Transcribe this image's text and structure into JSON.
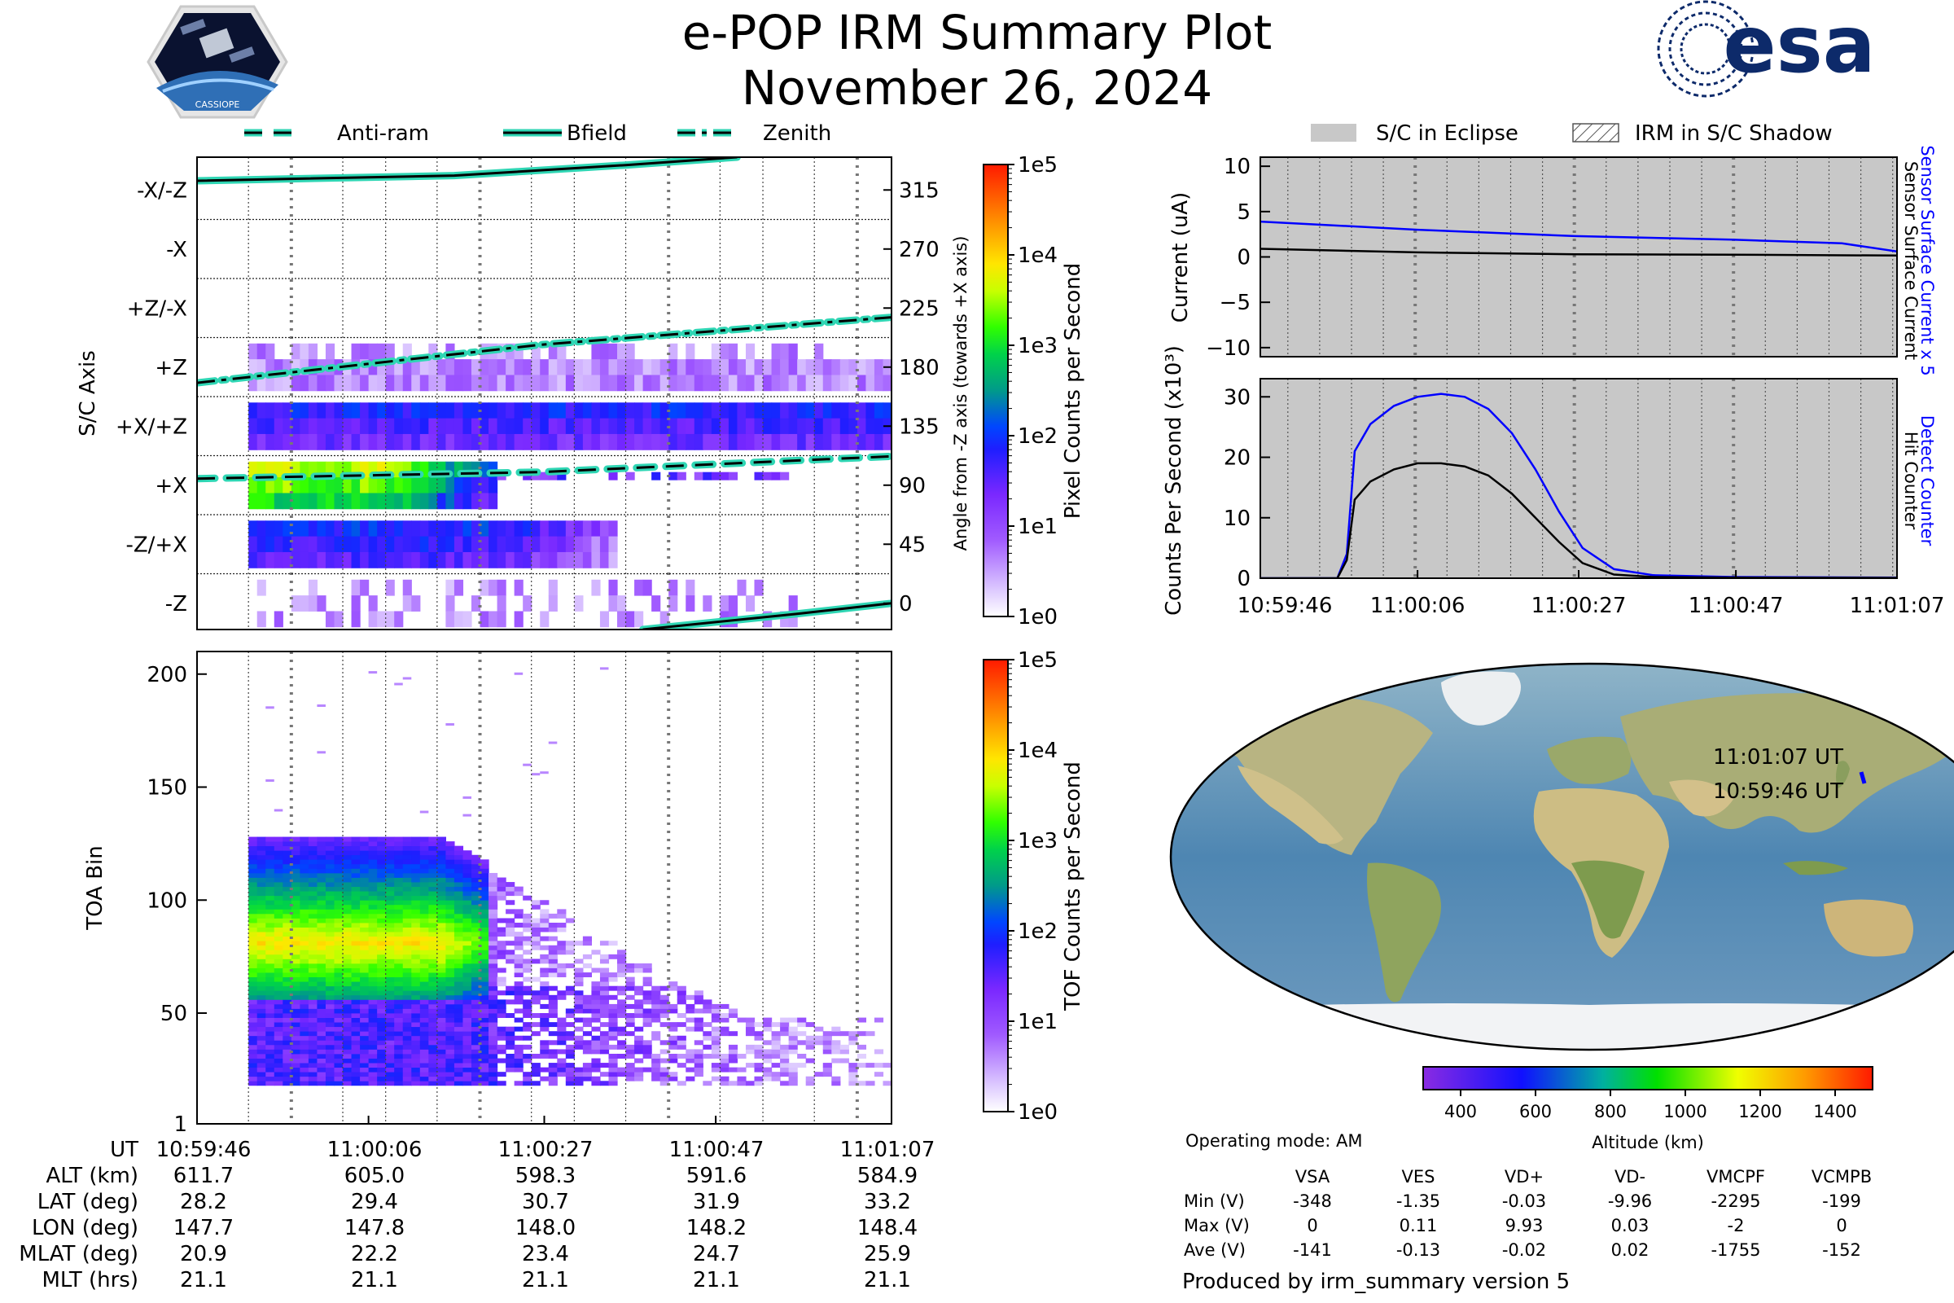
{
  "header": {
    "title": "e-POP IRM Summary Plot",
    "date": "November 26, 2024",
    "left_logo_text": "CASSIOPE",
    "right_logo_text": "esa"
  },
  "colors": {
    "bfield": "#000000",
    "trace_glow": "#2fd6b4",
    "sensor_current_x5": "#0000ff",
    "sensor_current": "#000000",
    "eclipse_fill": "#c8c8c8",
    "track": "#0000ff"
  },
  "legend_orientation": {
    "position": "top",
    "items": [
      {
        "label": "Anti-ram",
        "style": "dashed"
      },
      {
        "label": "Bfield",
        "style": "solid"
      },
      {
        "label": "Zenith",
        "style": "dashdot"
      }
    ]
  },
  "legend_eclipse": {
    "position": "top",
    "items": [
      {
        "label": "S/C in Eclipse",
        "style": "gray-fill"
      },
      {
        "label": "IRM in S/C Shadow",
        "style": "hatch"
      }
    ]
  },
  "ut_ticks": [
    "10:59:46",
    "11:00:06",
    "11:00:27",
    "11:00:47",
    "11:01:07"
  ],
  "orbit_table": {
    "rows": [
      {
        "label": "UT",
        "values": [
          "10:59:46",
          "11:00:06",
          "11:00:27",
          "11:00:47",
          "11:01:07"
        ]
      },
      {
        "label": "ALT (km)",
        "values": [
          "611.7",
          "605.0",
          "598.3",
          "591.6",
          "584.9"
        ]
      },
      {
        "label": "LAT (deg)",
        "values": [
          "28.2",
          "29.4",
          "30.7",
          "31.9",
          "33.2"
        ]
      },
      {
        "label": "LON (deg)",
        "values": [
          "147.7",
          "147.8",
          "148.0",
          "148.2",
          "148.4"
        ]
      },
      {
        "label": "MLAT (deg)",
        "values": [
          "20.9",
          "22.2",
          "23.4",
          "24.7",
          "25.9"
        ]
      },
      {
        "label": "MLT (hrs)",
        "values": [
          "21.1",
          "21.1",
          "21.1",
          "21.1",
          "21.1"
        ]
      }
    ]
  },
  "colorbar_pixel": {
    "label": "Pixel Counts per Second",
    "ticks": [
      "1e0",
      "1e1",
      "1e2",
      "1e3",
      "1e4",
      "1e5"
    ]
  },
  "colorbar_tof": {
    "label": "TOF Counts per Second",
    "ticks": [
      "1e0",
      "1e1",
      "1e2",
      "1e3",
      "1e4",
      "1e5"
    ]
  },
  "map": {
    "label_end": "11:01:07 UT",
    "label_start": "10:59:46 UT",
    "altitude_colorbar": {
      "label": "Altitude (km)",
      "ticks": [
        "400",
        "600",
        "800",
        "1000",
        "1200",
        "1400"
      ],
      "min": 300,
      "max": 1500
    }
  },
  "voltages": {
    "mode": "Operating mode: AM",
    "columns": [
      "VSA",
      "VES",
      "VD+",
      "VD-",
      "VMCPF",
      "VCMPB"
    ],
    "rows": [
      {
        "label": "Min (V)",
        "values": [
          "-348",
          "-1.35",
          "-0.03",
          "-9.96",
          "-2295",
          "-199"
        ]
      },
      {
        "label": "Max (V)",
        "values": [
          "0",
          "0.11",
          "9.93",
          "0.03",
          "-2",
          "0"
        ]
      },
      {
        "label": "Ave (V)",
        "values": [
          "-141",
          "-0.13",
          "-0.02",
          "0.02",
          "-1755",
          "-152"
        ]
      }
    ]
  },
  "footer": "Produced by irm_summary version 5",
  "chart_data": [
    {
      "type": "heatmap",
      "id": "sc-axis",
      "ylabel": "S/C Axis",
      "ylabel_right": "Angle from -Z axis (towards +X axis)",
      "y_categories": [
        "-X/-Z",
        "-X",
        "+Z/-X",
        "+Z",
        "+X/+Z",
        "+X",
        "-Z/+X",
        "-Z"
      ],
      "y_right_ticks": [
        315,
        270,
        225,
        180,
        135,
        90,
        45,
        0
      ],
      "ylim": [
        -20,
        340
      ],
      "x_ticks": [
        "10:59:46",
        "11:00:06",
        "11:00:27",
        "11:00:47",
        "11:01:07"
      ],
      "x_range_s": [
        0,
        81
      ],
      "colorbar": "Pixel Counts per Second",
      "series": [
        {
          "name": "Anti-ram",
          "style": "dashed",
          "points": [
            [
              0,
              95
            ],
            [
              40,
              100
            ],
            [
              81,
              112
            ]
          ]
        },
        {
          "name": "Bfield",
          "style": "solid",
          "segments": [
            [
              [
                0,
                322
              ],
              [
                30,
                326
              ],
              [
                50,
                334
              ],
              [
                63,
                340
              ]
            ],
            [
              [
                52,
                -20
              ],
              [
                70,
                -8
              ],
              [
                81,
                0
              ]
            ]
          ]
        },
        {
          "name": "Zenith",
          "style": "dashdot",
          "points": [
            [
              0,
              168
            ],
            [
              40,
              197
            ],
            [
              81,
              218
            ]
          ]
        }
      ],
      "bands": [
        {
          "angle": 0,
          "start_s": 6,
          "end_s": 70,
          "level": 0.6
        },
        {
          "angle": 45,
          "start_s": 6,
          "end_s": 49,
          "level": 1.8
        },
        {
          "angle": 90,
          "start_s": 6,
          "end_s": 35,
          "level": 3.0
        },
        {
          "angle": 135,
          "start_s": 6,
          "end_s": 81,
          "level": 1.7
        },
        {
          "angle": 180,
          "start_s": 6,
          "end_s": 81,
          "level": 0.6
        }
      ]
    },
    {
      "type": "heatmap",
      "id": "toa",
      "ylabel": "TOA Bin",
      "y_ticks": [
        1,
        50,
        100,
        150,
        200
      ],
      "ylim": [
        1,
        210
      ],
      "x_ticks": [
        "10:59:46",
        "11:00:06",
        "11:00:27",
        "11:00:47",
        "11:01:07"
      ],
      "x_range_s": [
        0,
        81
      ],
      "colorbar": "TOF Counts per Second",
      "peak_bin": 80
    },
    {
      "type": "line",
      "id": "current",
      "ylabel": "Current (uA)",
      "ylim": [
        -11,
        11
      ],
      "y_ticks": [
        10,
        5,
        0,
        -5,
        -10
      ],
      "x_range_s": [
        0,
        81
      ],
      "series": [
        {
          "name": "Sensor Surface Current x 5",
          "color": "#0000ff",
          "x": [
            0,
            20,
            40,
            60,
            74,
            81
          ],
          "y": [
            3.9,
            3.0,
            2.3,
            1.9,
            1.5,
            0.6
          ]
        },
        {
          "name": "Sensor Surface Current",
          "color": "#000000",
          "x": [
            0,
            20,
            40,
            60,
            81
          ],
          "y": [
            0.9,
            0.5,
            0.3,
            0.25,
            0.15
          ]
        }
      ]
    },
    {
      "type": "line",
      "id": "counts",
      "ylabel": "Counts Per Second (x10³)",
      "ylim": [
        0,
        33
      ],
      "y_ticks": [
        0,
        10,
        20,
        30
      ],
      "x_ticks": [
        "10:59:46",
        "11:00:06",
        "11:00:27",
        "11:00:47",
        "11:01:07"
      ],
      "x_range_s": [
        0,
        81
      ],
      "series": [
        {
          "name": "Detect Counter",
          "color": "#0000ff",
          "x": [
            0,
            9.8,
            11,
            12,
            14,
            17,
            20,
            23,
            26,
            29,
            32,
            35,
            38,
            41,
            45,
            50,
            60,
            81
          ],
          "y": [
            0,
            0,
            4,
            21,
            25.5,
            28.5,
            30,
            30.5,
            30,
            28,
            24,
            18,
            11,
            5,
            1.5,
            0.5,
            0.2,
            0.1
          ]
        },
        {
          "name": "Hit Counter",
          "color": "#000000",
          "x": [
            0,
            9.8,
            11,
            12,
            14,
            17,
            20,
            23,
            26,
            29,
            32,
            35,
            38,
            41,
            45,
            50,
            60,
            81
          ],
          "y": [
            0,
            0,
            3,
            13,
            16,
            18,
            19,
            19,
            18.5,
            17,
            14,
            10,
            6,
            2.5,
            0.6,
            0.2,
            0.1,
            0.05
          ]
        }
      ]
    }
  ]
}
